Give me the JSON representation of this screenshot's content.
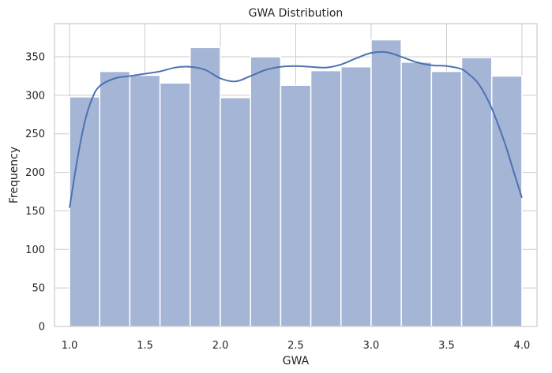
{
  "chart_data": {
    "type": "bar",
    "title": "GWA Distribution",
    "xlabel": "GWA",
    "ylabel": "Frequency",
    "xlim": [
      0.9,
      4.1
    ],
    "ylim": [
      0,
      393
    ],
    "x_ticks": [
      1.0,
      1.5,
      2.0,
      2.5,
      3.0,
      3.5,
      4.0
    ],
    "x_tick_labels": [
      "1.0",
      "1.5",
      "2.0",
      "2.5",
      "3.0",
      "3.5",
      "4.0"
    ],
    "y_ticks": [
      0,
      50,
      100,
      150,
      200,
      250,
      300,
      350
    ],
    "y_tick_labels": [
      "0",
      "50",
      "100",
      "150",
      "200",
      "250",
      "300",
      "350"
    ],
    "grid": true,
    "bins": {
      "edges": [
        1.0,
        1.2,
        1.4,
        1.6,
        1.8,
        2.0,
        2.2,
        2.4,
        2.6,
        2.8,
        3.0,
        3.2,
        3.4,
        3.6,
        3.8,
        4.0
      ],
      "counts": [
        298,
        331,
        326,
        316,
        362,
        297,
        350,
        313,
        332,
        337,
        372,
        343,
        331,
        349,
        325
      ]
    },
    "kde": {
      "x": [
        1.0,
        1.05,
        1.1,
        1.15,
        1.2,
        1.3,
        1.4,
        1.5,
        1.6,
        1.7,
        1.8,
        1.9,
        2.0,
        2.1,
        2.2,
        2.3,
        2.4,
        2.5,
        2.6,
        2.7,
        2.8,
        2.9,
        3.0,
        3.1,
        3.2,
        3.3,
        3.4,
        3.5,
        3.6,
        3.65,
        3.7,
        3.75,
        3.8,
        3.85,
        3.9,
        3.95,
        4.0
      ],
      "y": [
        154,
        215,
        265,
        296,
        312,
        322,
        325,
        328,
        331,
        336,
        337,
        333,
        322,
        318,
        325,
        333,
        337,
        338,
        337,
        336,
        340,
        348,
        355,
        356,
        350,
        343,
        339,
        338,
        334,
        327,
        318,
        303,
        283,
        258,
        230,
        198,
        167
      ]
    },
    "colors": {
      "bar_fill": "#a3b4d4",
      "bar_edge": "#ffffff",
      "kde_line": "#4c72b0",
      "grid": "#cccccc",
      "spine": "#cccccc"
    }
  }
}
